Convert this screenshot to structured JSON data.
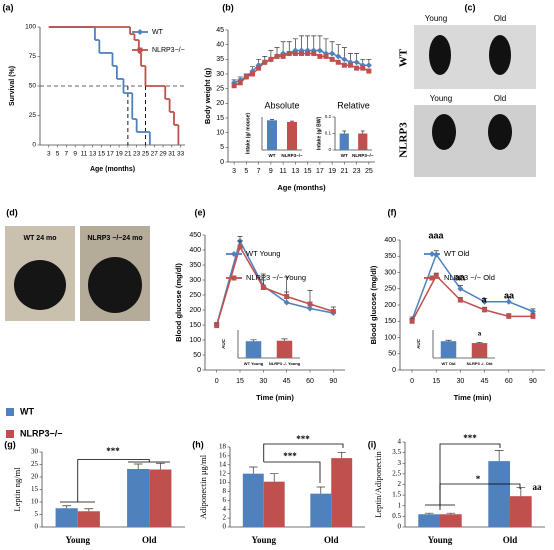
{
  "chart_data": [
    {
      "type": "step",
      "panel": "(a)",
      "xlabel": "Age (months)",
      "ylabel": "Survival (%)",
      "xlim": [
        1,
        34
      ],
      "xticks": [
        3,
        5,
        7,
        9,
        11,
        13,
        15,
        17,
        19,
        21,
        23,
        25,
        27,
        29,
        31,
        33
      ],
      "ylim": [
        0,
        100
      ],
      "yticks": [
        0,
        25,
        50,
        75,
        100
      ],
      "reference_y": 50,
      "reference_x": [
        21,
        25
      ],
      "series": [
        {
          "name": "WT",
          "color": "#4f81bd",
          "x": [
            3,
            13.5,
            14.5,
            17.5,
            18.5,
            20,
            22,
            23,
            26
          ],
          "values": [
            100,
            89,
            78,
            67,
            56,
            44,
            22,
            11,
            0
          ]
        },
        {
          "name": "NLRP3−/−",
          "color": "#c0504d",
          "x": [
            3,
            21.5,
            22.5,
            23.5,
            24,
            25,
            29.5,
            30.5,
            31.5,
            32.5
          ],
          "values": [
            100,
            94,
            89,
            78,
            67,
            50,
            39,
            28,
            17,
            0
          ]
        }
      ]
    },
    {
      "type": "line",
      "panel": "(b)",
      "xlabel": "Age (months)",
      "ylabel": "Body weight (g)",
      "x": [
        3,
        4,
        5,
        6,
        7,
        8,
        9,
        10,
        11,
        12,
        13,
        14,
        15,
        16,
        17,
        18,
        19,
        20,
        21,
        22,
        23,
        24,
        25
      ],
      "xlim": [
        2,
        26
      ],
      "xticks": [
        3,
        5,
        7,
        9,
        11,
        13,
        15,
        17,
        19,
        21,
        23,
        25
      ],
      "ylim": [
        0,
        45
      ],
      "yticks": [
        0,
        5,
        10,
        15,
        20,
        25,
        30,
        35,
        40,
        45
      ],
      "series": [
        {
          "color": "#4f81bd",
          "values": [
            27,
            28,
            29,
            31,
            33,
            34,
            35,
            36,
            37,
            37,
            38,
            38,
            38,
            38,
            38,
            37,
            37,
            36,
            35,
            34,
            34,
            33,
            33
          ],
          "errors": [
            1,
            1,
            1,
            1.5,
            2,
            2,
            3,
            3,
            4,
            4,
            4,
            5,
            5,
            5,
            5,
            5,
            4,
            4,
            4,
            3,
            3,
            2,
            2
          ]
        },
        {
          "color": "#c0504d",
          "values": [
            26,
            27,
            29,
            30,
            32,
            34,
            35,
            36,
            36,
            37,
            37,
            37,
            37,
            37,
            36,
            36,
            35,
            34,
            33,
            33,
            32,
            32,
            31
          ]
        }
      ],
      "insets": [
        {
          "type": "bar",
          "title": "Absolute",
          "ylabel": "Intake (g/ mouse)",
          "categories": [
            "WT",
            "NLRP3−/−"
          ],
          "values": [
            3.6,
            3.4
          ],
          "errors": [
            0.1,
            0.1
          ],
          "colors": [
            "#4f81bd",
            "#c0504d"
          ],
          "ylim": [
            0,
            4
          ]
        },
        {
          "type": "bar",
          "title": "Relative",
          "ylabel": "Intake (g/ BW)",
          "categories": [
            "WT",
            "NLRP3−/−"
          ],
          "values": [
            0.1,
            0.1
          ],
          "errors": [
            0.015,
            0.015
          ],
          "colors": [
            "#4f81bd",
            "#c0504d"
          ],
          "ylim": [
            0,
            0.2
          ],
          "yticks": [
            0,
            0.1,
            0.2
          ]
        }
      ]
    },
    {
      "type": "line",
      "panel": "(e)",
      "xlabel": "Time (min)",
      "ylabel": "Blood glucose  (mg/dl)",
      "categories": [
        "0",
        "15",
        "30",
        "45",
        "60",
        "90"
      ],
      "ylim": [
        0,
        450
      ],
      "yticks": [
        0,
        50,
        100,
        150,
        200,
        250,
        300,
        350,
        400,
        450
      ],
      "series": [
        {
          "name": "WT Young",
          "color": "#4f81bd",
          "values": [
            150,
            430,
            280,
            225,
            205,
            190
          ],
          "errors": [
            8,
            15,
            20,
            35,
            20,
            10
          ]
        },
        {
          "name": "NLRP3 −/− Young",
          "color": "#c0504d",
          "values": [
            148,
            410,
            275,
            245,
            220,
            195
          ],
          "errors": [
            8,
            20,
            45,
            65,
            45,
            15
          ]
        }
      ],
      "inset": {
        "type": "bar",
        "ylabel": "AUC",
        "categories": [
          "WT Young",
          "NLRP3 -/- Young"
        ],
        "values": [
          18000,
          18500
        ],
        "errors": [
          1500,
          2000
        ],
        "colors": [
          "#4f81bd",
          "#c0504d"
        ],
        "ylim": [
          0,
          30000
        ]
      }
    },
    {
      "type": "line",
      "panel": "(f)",
      "xlabel": "Time (min)",
      "ylabel": "Blood glucose  (mg/dl)",
      "categories": [
        "0",
        "15",
        "30",
        "45",
        "60",
        "90"
      ],
      "ylim": [
        0,
        400
      ],
      "yticks": [
        0,
        50,
        100,
        150,
        200,
        250,
        300,
        350,
        400
      ],
      "series": [
        {
          "name": "WT Old",
          "color": "#4f81bd",
          "values": [
            155,
            355,
            250,
            210,
            210,
            180
          ],
          "errors": [
            8,
            12,
            10,
            10,
            15,
            8
          ]
        },
        {
          "name": "NLRP3 −/− Old",
          "color": "#c0504d",
          "values": [
            150,
            290,
            215,
            185,
            165,
            165
          ],
          "errors": [
            8,
            8,
            8,
            8,
            8,
            8
          ]
        }
      ],
      "annotations": [
        "aaa",
        "aa",
        "a",
        "aa"
      ],
      "inset": {
        "type": "bar",
        "ylabel": "AUC",
        "categories": [
          "WT Old",
          "NLRP3 -/- Old"
        ],
        "values": [
          18000,
          16000
        ],
        "errors": [
          1000,
          800
        ],
        "colors": [
          "#4f81bd",
          "#c0504d"
        ],
        "ylim": [
          0,
          30000
        ],
        "annotations": [
          "a"
        ]
      }
    },
    {
      "type": "bar",
      "panel": "(g)",
      "ylabel": "Leptin  ng/ml",
      "categories": [
        "Young",
        "Old"
      ],
      "ylim": [
        0,
        30
      ],
      "yticks": [
        0,
        5,
        10,
        15,
        20,
        25,
        30
      ],
      "series": [
        {
          "color": "#4f81bd",
          "values": [
            7.5,
            23.2
          ],
          "errors": [
            1,
            2
          ]
        },
        {
          "color": "#c0504d",
          "values": [
            6.3,
            23
          ],
          "errors": [
            1,
            2.5
          ]
        }
      ],
      "annotations": [
        "***"
      ]
    },
    {
      "type": "bar",
      "panel": "(h)",
      "ylabel": "Adiponectin  μg/ml",
      "categories": [
        "Young",
        "Old"
      ],
      "ylim": [
        0,
        18
      ],
      "yticks": [
        0,
        2,
        4,
        6,
        8,
        10,
        12,
        14,
        16,
        18
      ],
      "series": [
        {
          "color": "#4f81bd",
          "values": [
            12,
            7.5
          ],
          "errors": [
            1.5,
            1.5
          ]
        },
        {
          "color": "#c0504d",
          "values": [
            10.2,
            15.5
          ],
          "errors": [
            1.8,
            1.3
          ]
        }
      ],
      "annotations": [
        "***",
        "***"
      ]
    },
    {
      "type": "bar",
      "panel": "(i)",
      "ylabel": "Leptin/Adiponectin",
      "categories": [
        "Young",
        "Old"
      ],
      "ylim": [
        0,
        4
      ],
      "yticks": [
        0,
        0.5,
        1,
        1.5,
        2,
        2.5,
        3,
        3.5,
        4
      ],
      "series": [
        {
          "color": "#4f81bd",
          "values": [
            0.6,
            3.1
          ],
          "errors": [
            0.05,
            0.5
          ]
        },
        {
          "color": "#c0504d",
          "values": [
            0.6,
            1.45
          ],
          "errors": [
            0.05,
            0.4
          ]
        }
      ],
      "annotations": [
        "***",
        "*",
        "aa"
      ]
    }
  ],
  "photos": {
    "c": {
      "panel": "(c)",
      "rows": [
        "WT",
        "NLRP3"
      ],
      "columns": [
        "Young",
        "Old"
      ]
    },
    "d": {
      "panel": "(d)",
      "captions": [
        "WT 24 mo",
        "NLRP3 −/−24 mo"
      ]
    }
  },
  "bar_legend": [
    {
      "name": "WT",
      "color": "#4f81bd"
    },
    {
      "name": "NLRP3−/−",
      "color": "#c0504d"
    }
  ]
}
